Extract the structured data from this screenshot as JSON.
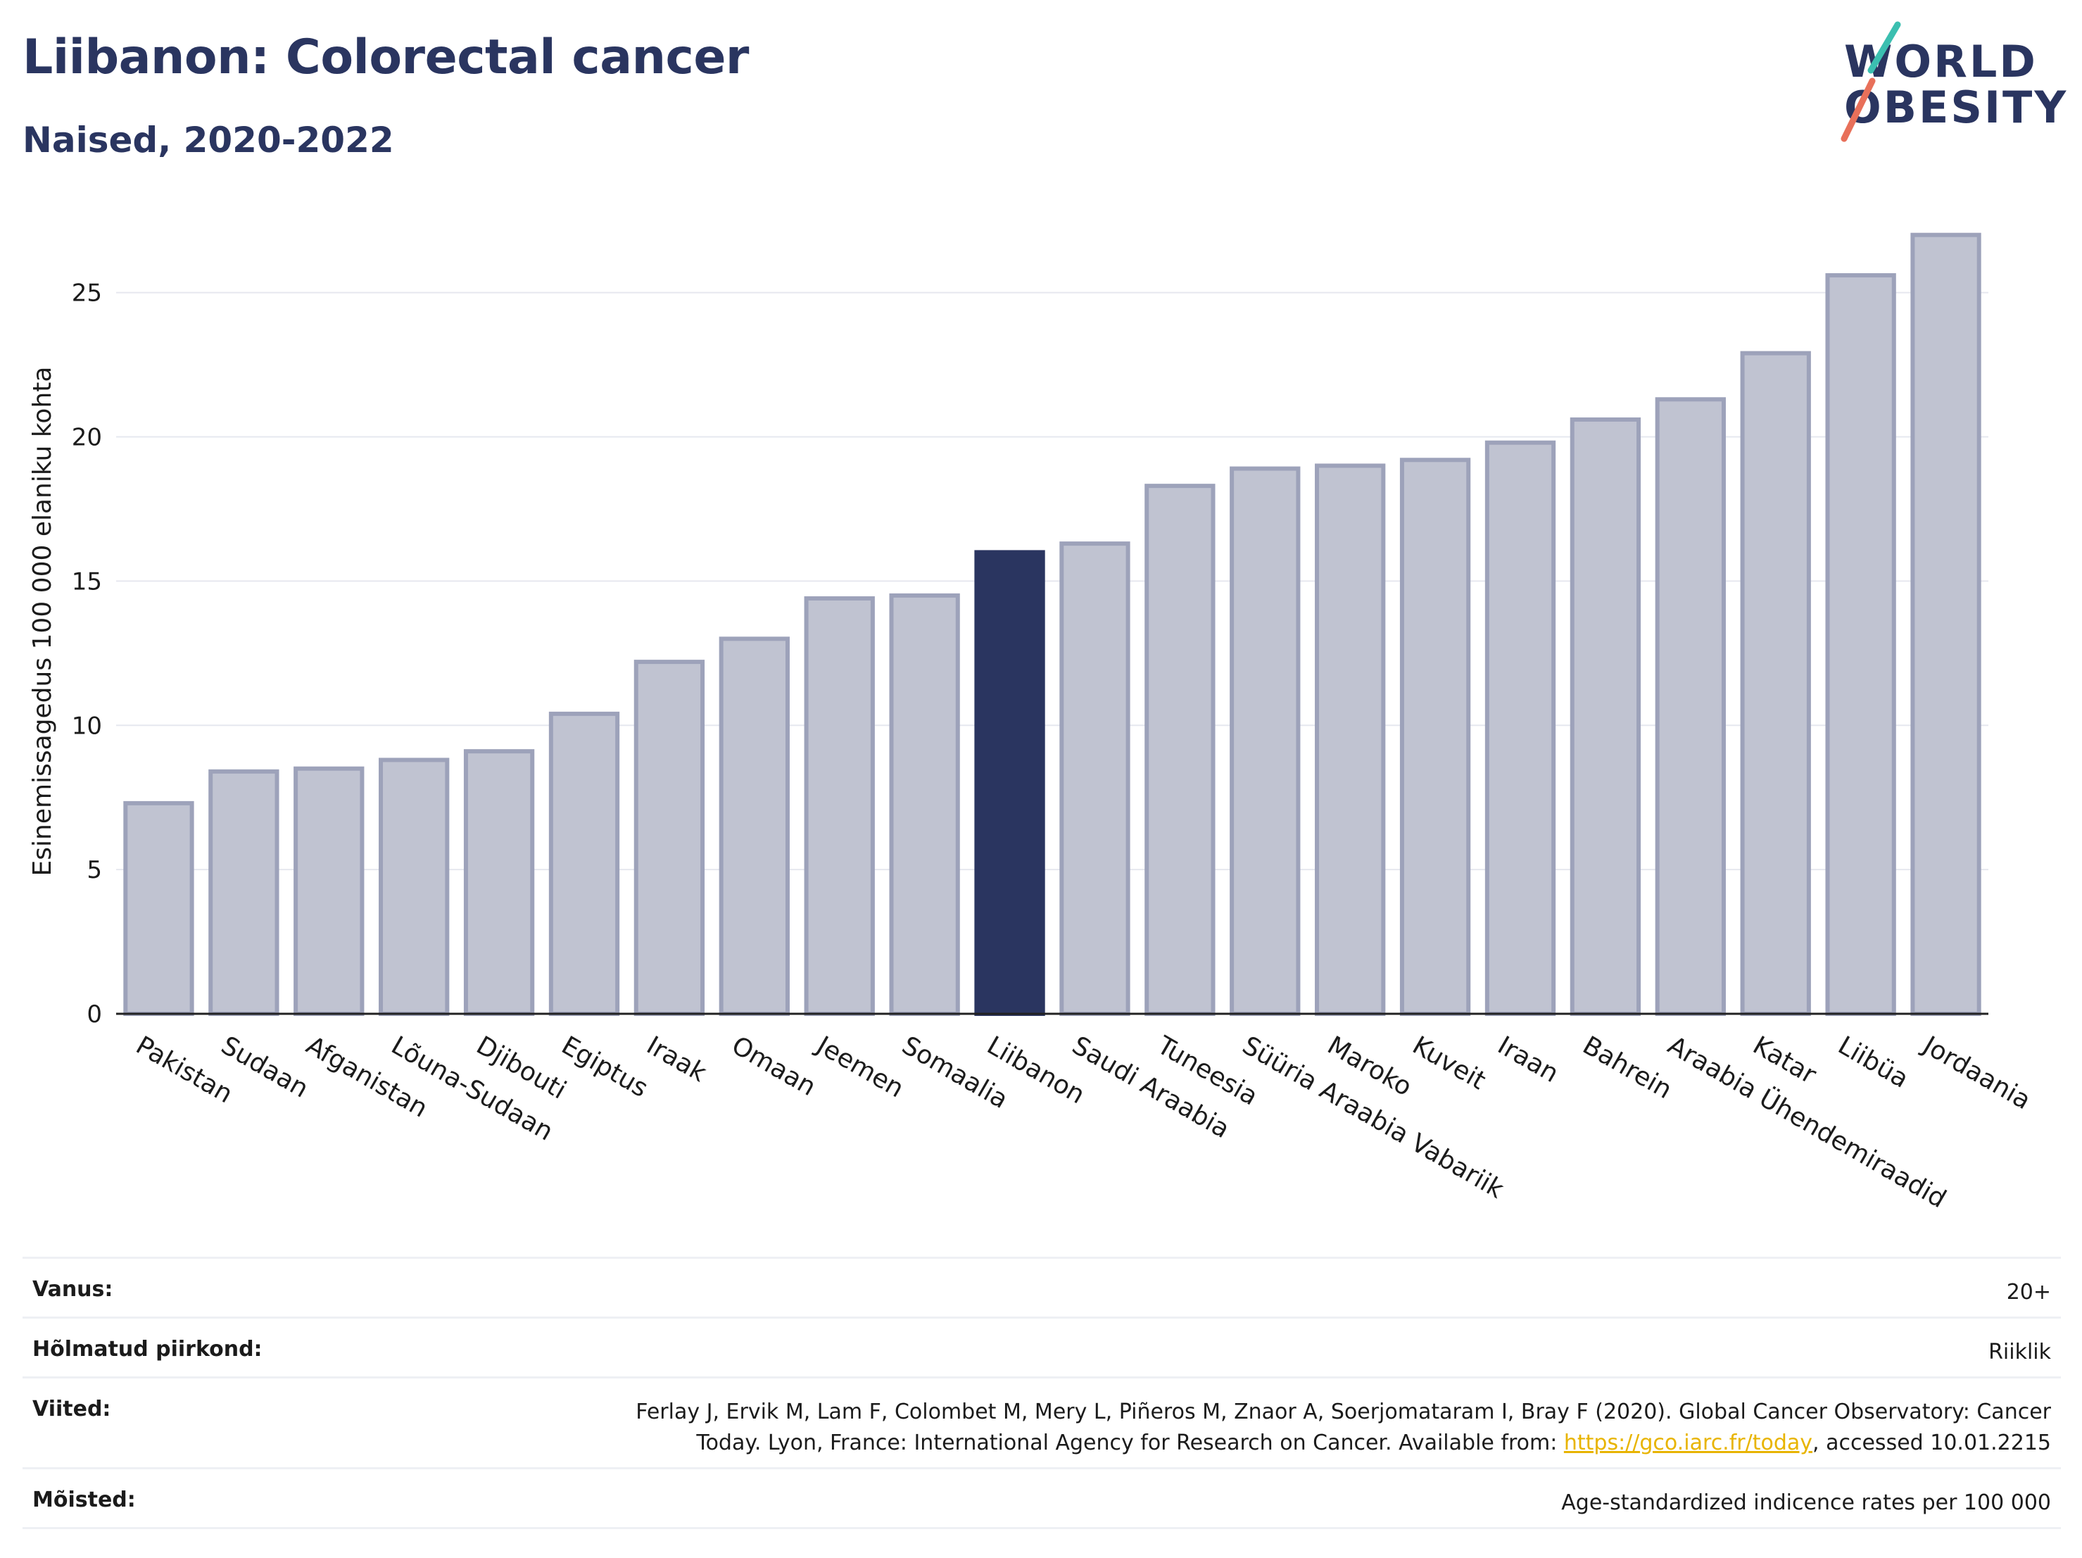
{
  "header": {
    "title": "Liibanon: Colorectal cancer",
    "subtitle": "Naised, 2020-2022"
  },
  "logo": {
    "line1": "WORLD",
    "line2": "OBESITY",
    "colors": {
      "text": "#2a3560",
      "slash_teal": "#3bbfb0",
      "slash_coral": "#e8705a"
    }
  },
  "chart_data": {
    "type": "bar",
    "ylabel": "Esinemissagedus 100 000 elaniku kohta",
    "ylim": [
      0,
      27.7
    ],
    "yticks": [
      0,
      5,
      10,
      15,
      20,
      25
    ],
    "grid": true,
    "highlight": "Liibanon",
    "colors": {
      "bar": "#c0c3d1",
      "bar_border": "#9da2ba",
      "highlight": "#2a3560"
    },
    "categories": [
      "Pakistan",
      "Sudaan",
      "Afganistan",
      "Lõuna-Sudaan",
      "Djibouti",
      "Egiptus",
      "Iraak",
      "Omaan",
      "Jeemen",
      "Somaalia",
      "Liibanon",
      "Saudi Araabia",
      "Tuneesia",
      "Süüria Araabia Vabariik",
      "Maroko",
      "Kuveit",
      "Iraan",
      "Bahrein",
      "Araabia Ühendemiraadid",
      "Katar",
      "Liibüa",
      "Jordaania"
    ],
    "values": [
      7.3,
      8.4,
      8.5,
      8.8,
      9.1,
      10.4,
      12.2,
      13.0,
      14.4,
      14.5,
      16.0,
      16.3,
      18.3,
      18.9,
      19.0,
      19.2,
      19.8,
      20.6,
      21.3,
      22.9,
      25.6,
      27.0
    ]
  },
  "meta": {
    "rows": [
      {
        "label": "Vanus:",
        "value": "20+"
      },
      {
        "label": "Hõlmatud piirkond:",
        "value": "Riiklik"
      },
      {
        "label": "Viited:",
        "value_line1": "Ferlay J, Ervik M, Lam F, Colombet M, Mery L, Piñeros M, Znaor A, Soerjomataram I, Bray F (2020). Global Cancer Observatory: Cancer",
        "value_line2_pre": "Today. Lyon, France: International Agency for Research on Cancer. Available from: ",
        "link": "https://gco.iarc.fr/today",
        "value_line2_post": ", accessed 10.01.2215"
      },
      {
        "label": "Mõisted:",
        "value": "Age-standardized indicence rates per 100 000"
      }
    ]
  }
}
